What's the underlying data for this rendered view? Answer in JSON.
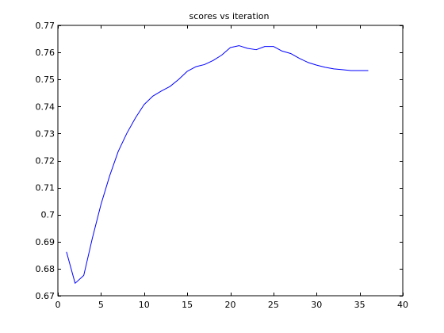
{
  "chart_data": {
    "type": "line",
    "title": "scores vs iteration",
    "xlabel": "",
    "ylabel": "",
    "xlim": [
      0,
      40
    ],
    "ylim": [
      0.67,
      0.77
    ],
    "xticks": [
      0,
      5,
      10,
      15,
      20,
      25,
      30,
      35,
      40
    ],
    "xtick_labels": [
      "0",
      "5",
      "10",
      "15",
      "20",
      "25",
      "30",
      "35",
      "40"
    ],
    "yticks": [
      0.67,
      0.68,
      0.69,
      0.7,
      0.71,
      0.72,
      0.73,
      0.74,
      0.75,
      0.76,
      0.77
    ],
    "ytick_labels": [
      "0.67",
      "0.68",
      "0.69",
      "0.7",
      "0.71",
      "0.72",
      "0.73",
      "0.74",
      "0.75",
      "0.76",
      "0.77"
    ],
    "grid": false,
    "box": true,
    "series": [
      {
        "color": "#0000ff",
        "x": [
          1,
          2,
          3,
          4,
          5,
          6,
          7,
          8,
          9,
          10,
          11,
          12,
          13,
          14,
          15,
          16,
          17,
          18,
          19,
          20,
          21,
          22,
          23,
          24,
          25,
          26,
          27,
          28,
          29,
          30,
          31,
          32,
          33,
          34,
          35,
          36
        ],
        "y": [
          0.6862,
          0.6746,
          0.6775,
          0.6913,
          0.7038,
          0.7143,
          0.7234,
          0.7301,
          0.7358,
          0.7407,
          0.7438,
          0.7457,
          0.7474,
          0.75,
          0.753,
          0.7547,
          0.7555,
          0.757,
          0.759,
          0.7618,
          0.7625,
          0.7615,
          0.761,
          0.7622,
          0.7622,
          0.7605,
          0.7596,
          0.7578,
          0.7563,
          0.7553,
          0.7545,
          0.7539,
          0.7536,
          0.7533,
          0.7533,
          0.7533
        ]
      }
    ]
  }
}
